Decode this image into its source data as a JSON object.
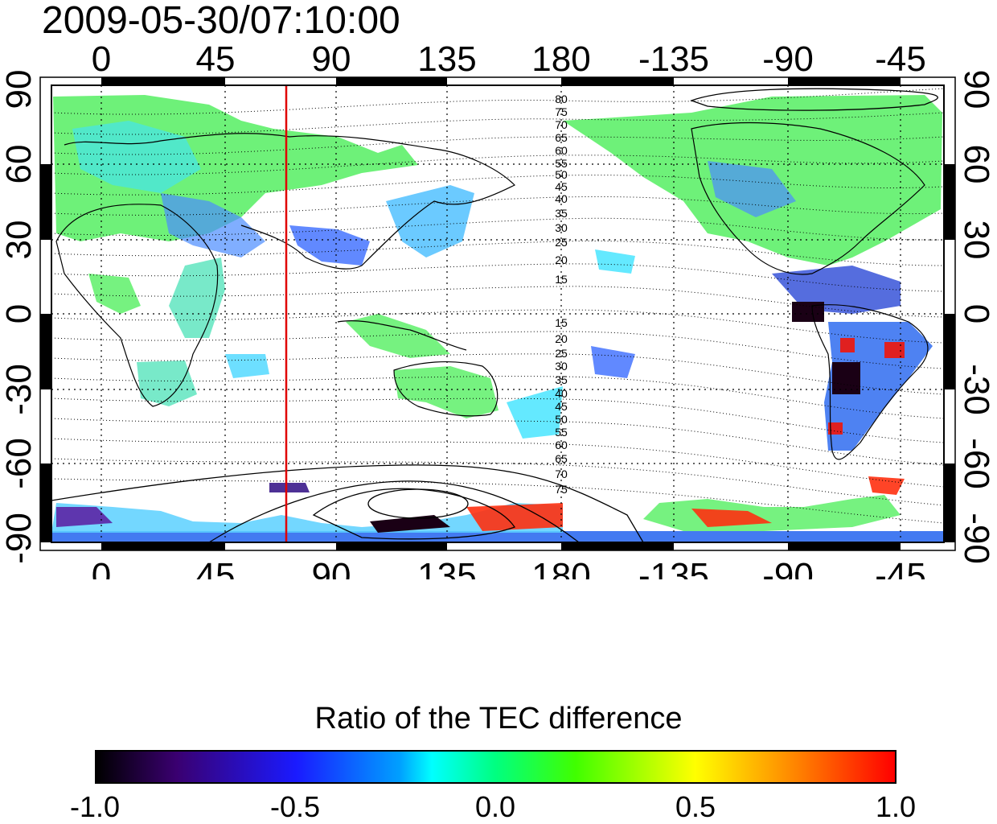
{
  "title": "2009-05-30/07:10:00",
  "map": {
    "top_ticks": [
      "0",
      "45",
      "90",
      "135",
      "180",
      "-135",
      "-90",
      "-45"
    ],
    "bottom_ticks": [
      "0",
      "45",
      "90",
      "135",
      "180",
      "-135",
      "-90",
      "-45"
    ],
    "left_ticks": [
      "90",
      "60",
      "30",
      "0",
      "-30",
      "-60",
      "-90"
    ],
    "right_ticks": [
      "90",
      "60",
      "30",
      "0",
      "-30",
      "-60",
      "-90"
    ],
    "contour_labels_north": [
      "80",
      "75",
      "70",
      "65",
      "60",
      "55",
      "50",
      "45",
      "40",
      "35",
      "30",
      "25",
      "20",
      "15"
    ],
    "contour_labels_south": [
      "15",
      "20",
      "25",
      "30",
      "35",
      "40",
      "45",
      "50",
      "55",
      "60",
      "65",
      "70",
      "75"
    ],
    "marker_line_color": "#e00000",
    "marker_longitude": 75
  },
  "colorbar": {
    "title": "Ratio of the TEC difference",
    "labels": [
      "-1.0",
      "-0.5",
      "0.0",
      "0.5",
      "1.0"
    ],
    "min": -1.0,
    "max": 1.0
  }
}
